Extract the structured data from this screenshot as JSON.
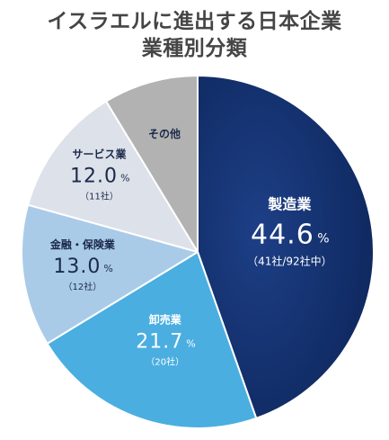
{
  "header": {
    "title_line1": "イスラエルに進出する日本企業",
    "title_line2": "業種別分類"
  },
  "chart_data": {
    "type": "pie",
    "title": "イスラエルに進出する日本企業 業種別分類",
    "start_angle_deg": 0,
    "direction": "clockwise",
    "slices": [
      {
        "name": "製造業",
        "value": 44.6,
        "value_label": "44.6",
        "unit": "%",
        "note": "（41社/92社中）",
        "color": "#12306b",
        "text_color": "#ffffff"
      },
      {
        "name": "卸売業",
        "value": 21.7,
        "value_label": "21.7",
        "unit": "%",
        "note": "（20社）",
        "color": "#4aaee0",
        "text_color": "#ffffff"
      },
      {
        "name": "金融・保険業",
        "value": 13.0,
        "value_label": "13.0",
        "unit": "%",
        "note": "（12社）",
        "color": "#a9cbe8",
        "text_color": "#1c2a4a"
      },
      {
        "name": "サービス業",
        "value": 12.0,
        "value_label": "12.0",
        "unit": "%",
        "note": "（11社）",
        "color": "#dde1ea",
        "text_color": "#1c2a4a"
      },
      {
        "name": "その他",
        "value": 8.7,
        "value_label": "",
        "unit": "",
        "note": "",
        "color": "#b2b2b2",
        "text_color": "#1c2a4a"
      }
    ]
  }
}
